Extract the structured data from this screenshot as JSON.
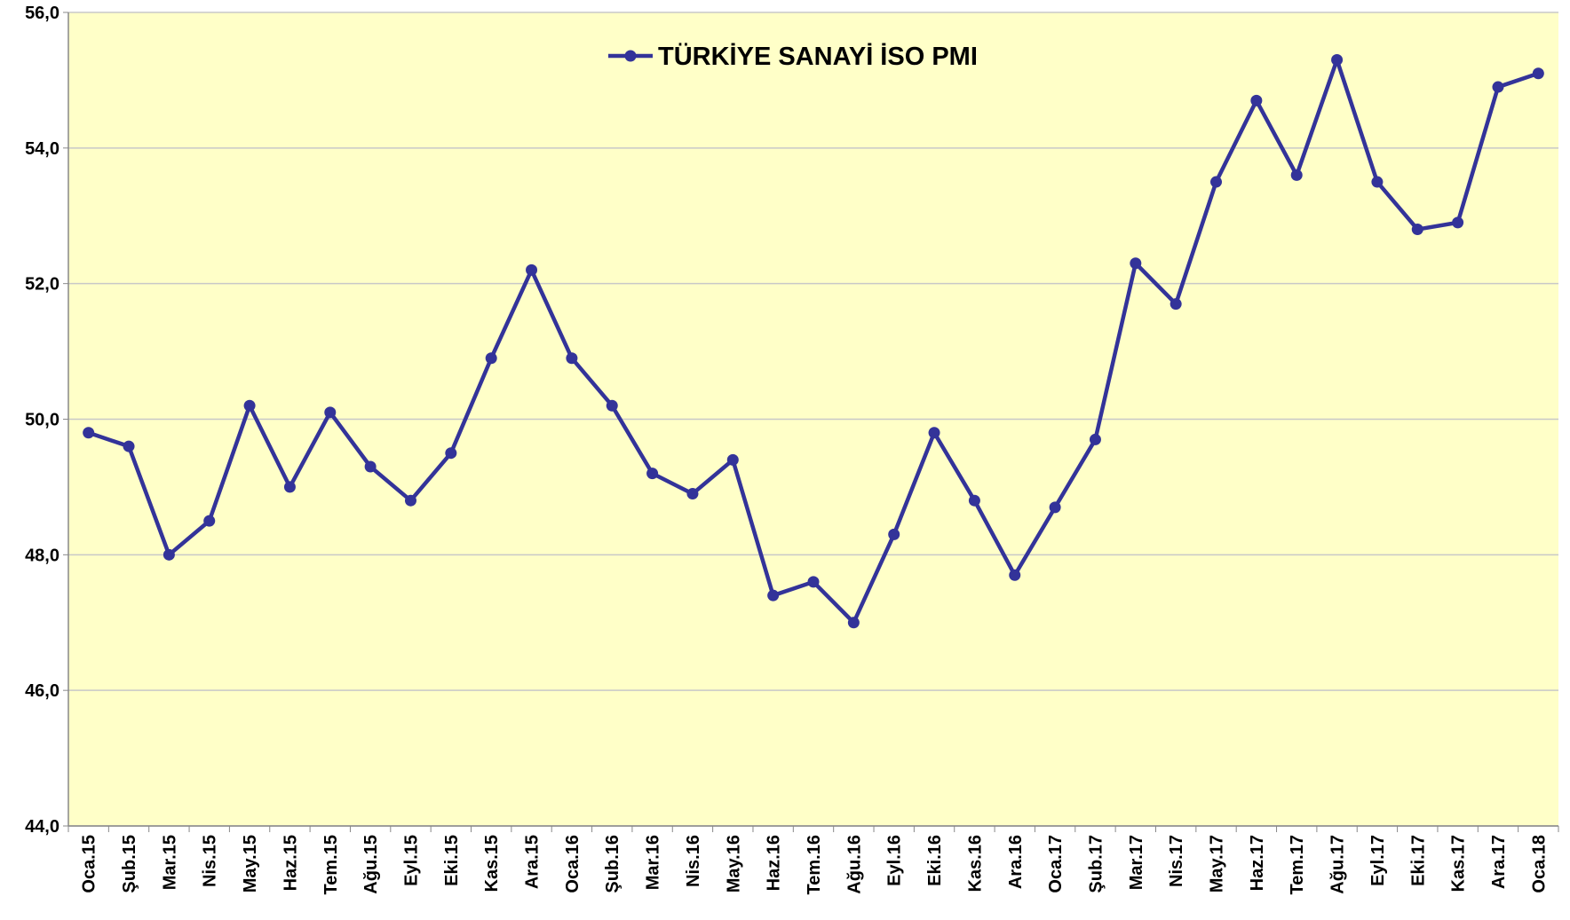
{
  "chart_data": {
    "type": "line",
    "categories": [
      "Oca.15",
      "Şub.15",
      "Mar.15",
      "Nis.15",
      "May.15",
      "Haz.15",
      "Tem.15",
      "Ağu.15",
      "Eyl.15",
      "Eki.15",
      "Kas.15",
      "Ara.15",
      "Oca.16",
      "Şub.16",
      "Mar.16",
      "Nis.16",
      "May.16",
      "Haz.16",
      "Tem.16",
      "Ağu.16",
      "Eyl.16",
      "Eki.16",
      "Kas.16",
      "Ara.16",
      "Oca.17",
      "Şub.17",
      "Mar.17",
      "Nis.17",
      "May.17",
      "Haz.17",
      "Tem.17",
      "Ağu.17",
      "Eyl.17",
      "Eki.17",
      "Kas.17",
      "Ara.17",
      "Oca.18"
    ],
    "series": [
      {
        "name": "TÜRKİYE SANAYİ İSO PMI",
        "color": "#333399",
        "values": [
          49.8,
          49.6,
          48.0,
          48.5,
          50.2,
          49.0,
          50.1,
          49.3,
          48.8,
          49.5,
          50.9,
          52.2,
          50.9,
          50.2,
          49.2,
          48.9,
          49.4,
          47.4,
          47.6,
          47.0,
          48.3,
          49.8,
          48.8,
          47.7,
          48.7,
          49.7,
          52.3,
          51.7,
          53.5,
          54.7,
          53.6,
          55.3,
          53.5,
          52.8,
          52.9,
          54.9,
          55.1
        ]
      }
    ],
    "ylim": [
      44,
      56
    ],
    "yticks": [
      {
        "value": 44,
        "label": "44,0"
      },
      {
        "value": 46,
        "label": "46,0"
      },
      {
        "value": 48,
        "label": "48,0"
      },
      {
        "value": 50,
        "label": "50,0"
      },
      {
        "value": 52,
        "label": "52,0"
      },
      {
        "value": 54,
        "label": "54,0"
      },
      {
        "value": 56,
        "label": "56,0"
      }
    ],
    "grid": true,
    "legend": "top",
    "background": "#ffffc8"
  }
}
